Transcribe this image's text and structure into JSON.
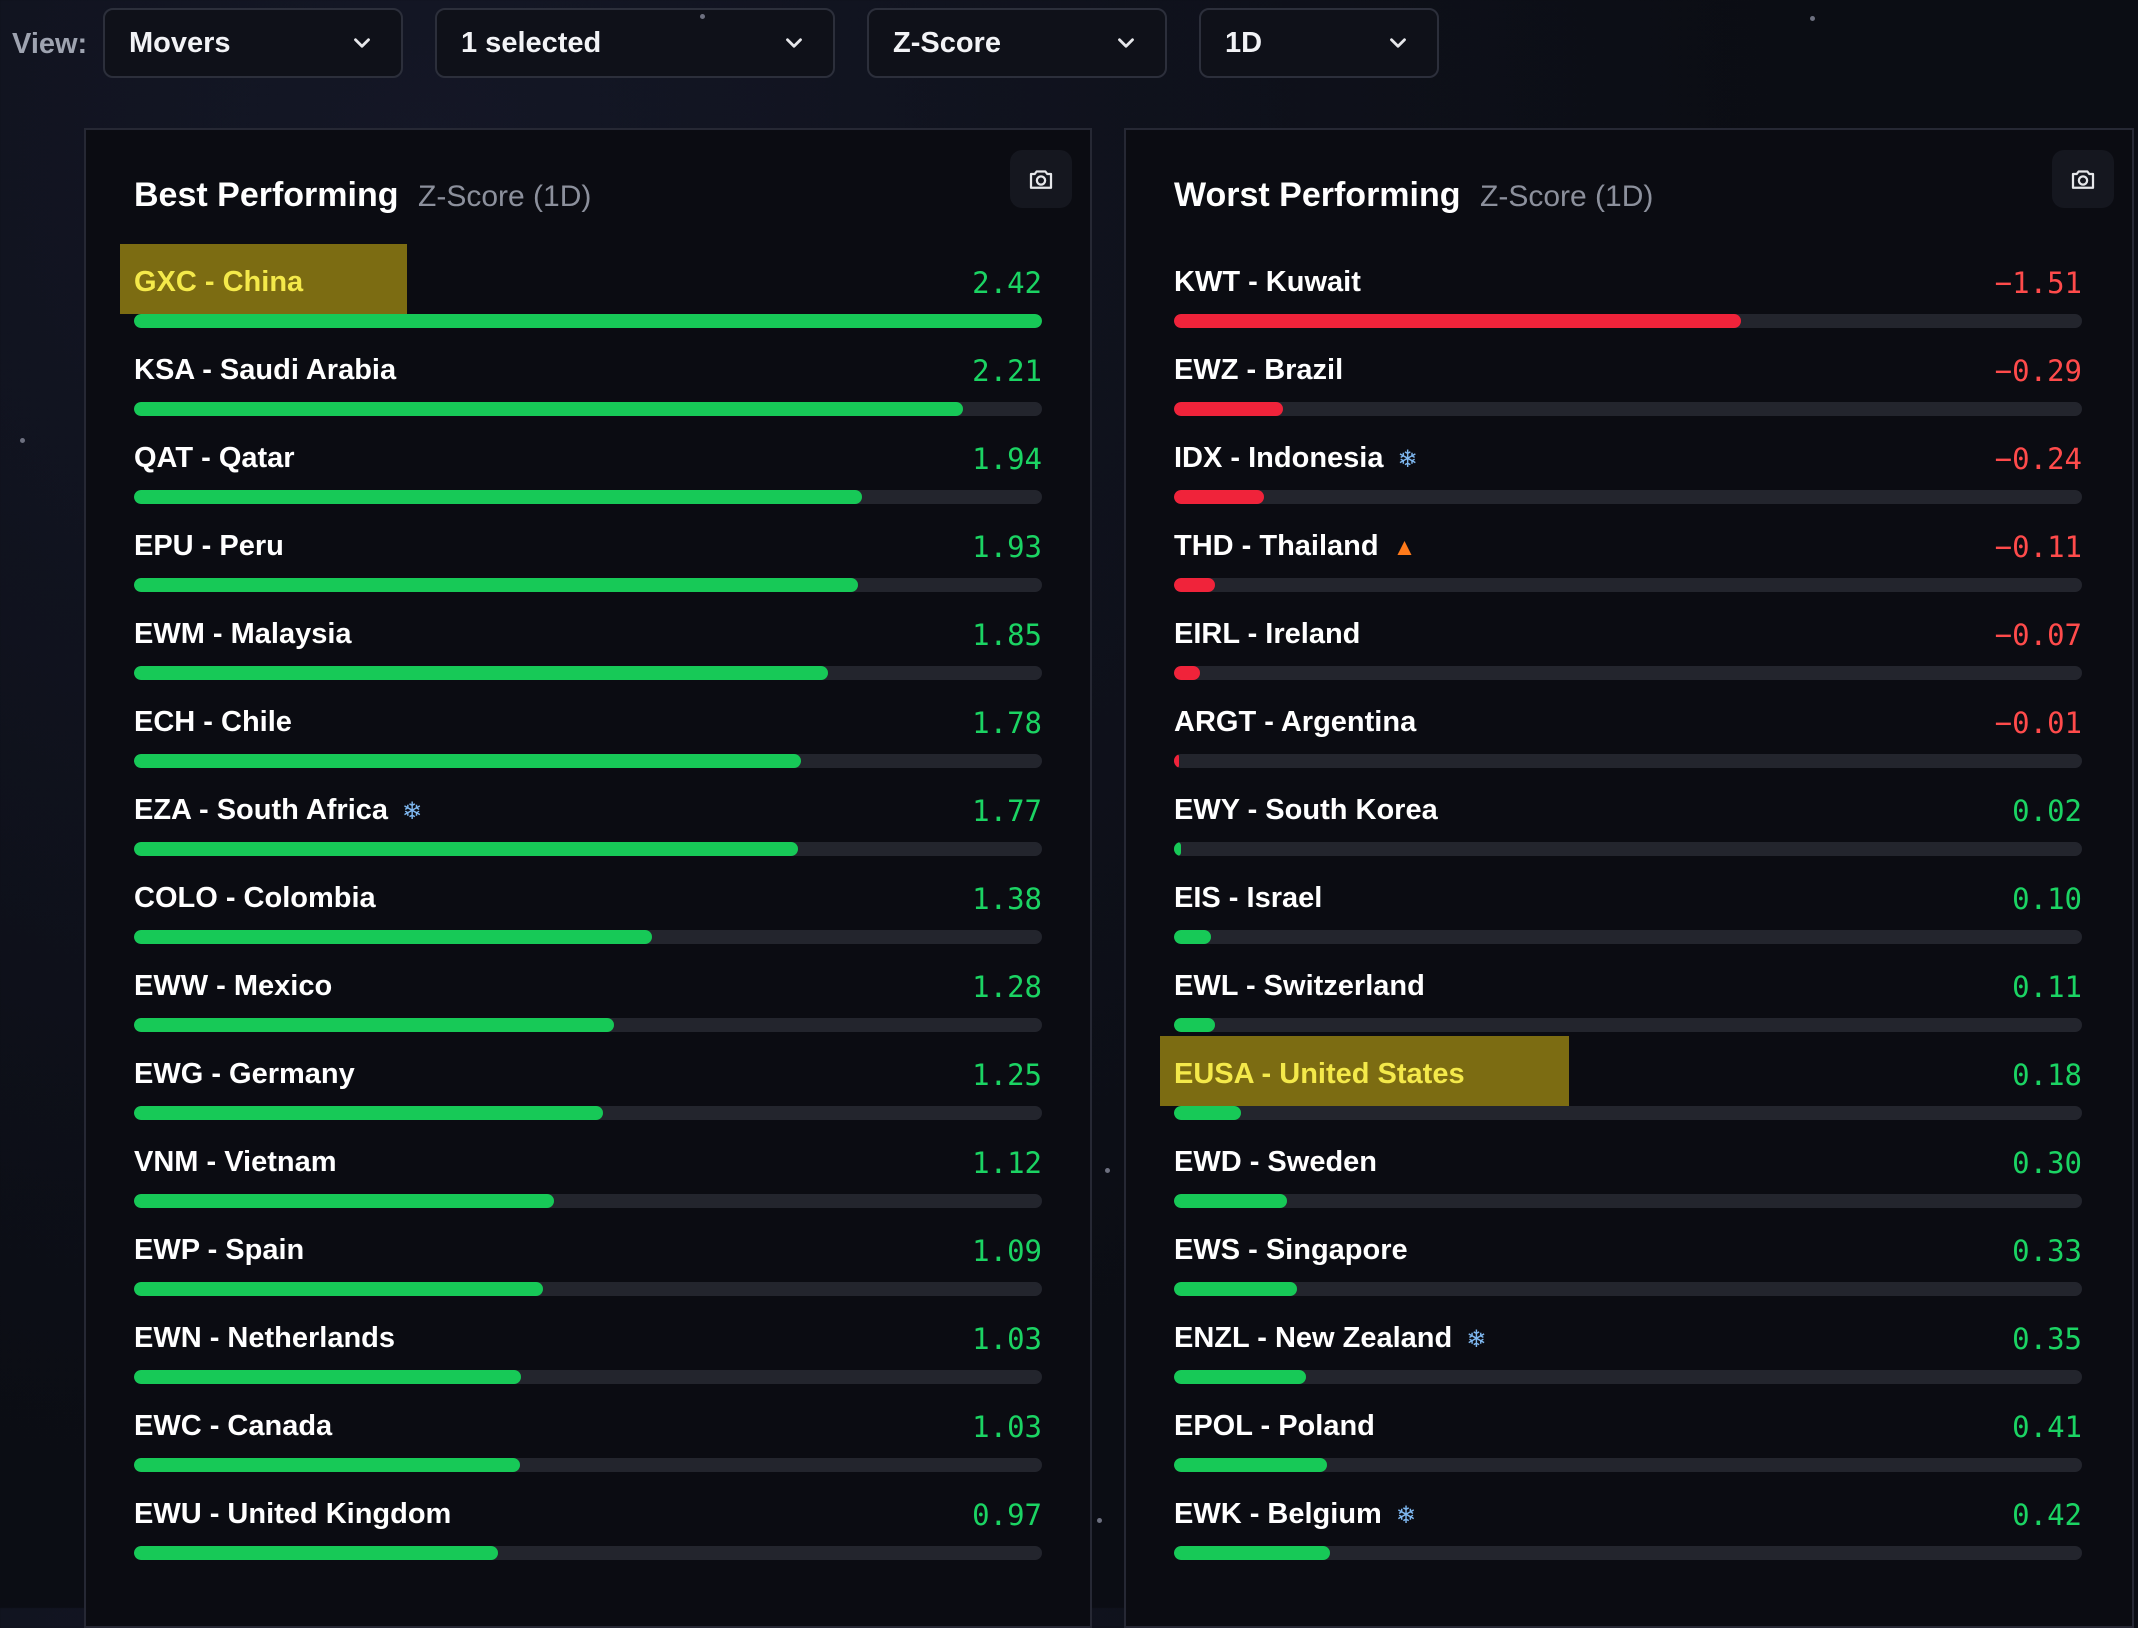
{
  "view": {
    "label": "View:",
    "selects": [
      {
        "value": "Movers"
      },
      {
        "value": "1 selected"
      },
      {
        "value": "Z-Score"
      },
      {
        "value": "1D"
      }
    ]
  },
  "colors": {
    "positive": "#17c957",
    "negative": "#f0233a",
    "highlight": "#7c6c12"
  },
  "best": {
    "title": "Best Performing",
    "subtitle": "Z-Score (1D)",
    "rows": [
      {
        "name": "GXC - China",
        "value": "2.42",
        "sign": "pos",
        "fill": 1.0,
        "highlight": true
      },
      {
        "name": "KSA - Saudi Arabia",
        "value": "2.21",
        "sign": "pos",
        "fill": 0.913
      },
      {
        "name": "QAT - Qatar",
        "value": "1.94",
        "sign": "pos",
        "fill": 0.802
      },
      {
        "name": "EPU - Peru",
        "value": "1.93",
        "sign": "pos",
        "fill": 0.797
      },
      {
        "name": "EWM - Malaysia",
        "value": "1.85",
        "sign": "pos",
        "fill": 0.764
      },
      {
        "name": "ECH - Chile",
        "value": "1.78",
        "sign": "pos",
        "fill": 0.735
      },
      {
        "name": "EZA - South Africa",
        "value": "1.77",
        "sign": "pos",
        "fill": 0.731,
        "icon": "snowflake"
      },
      {
        "name": "COLO - Colombia",
        "value": "1.38",
        "sign": "pos",
        "fill": 0.57
      },
      {
        "name": "EWW - Mexico",
        "value": "1.28",
        "sign": "pos",
        "fill": 0.529
      },
      {
        "name": "EWG - Germany",
        "value": "1.25",
        "sign": "pos",
        "fill": 0.517
      },
      {
        "name": "VNM - Vietnam",
        "value": "1.12",
        "sign": "pos",
        "fill": 0.463
      },
      {
        "name": "EWP - Spain",
        "value": "1.09",
        "sign": "pos",
        "fill": 0.45
      },
      {
        "name": "EWN - Netherlands",
        "value": "1.03",
        "sign": "pos",
        "fill": 0.426
      },
      {
        "name": "EWC - Canada",
        "value": "1.03",
        "sign": "pos",
        "fill": 0.425
      },
      {
        "name": "EWU - United Kingdom",
        "value": "0.97",
        "sign": "pos",
        "fill": 0.401
      }
    ]
  },
  "worst": {
    "title": "Worst Performing",
    "subtitle": "Z-Score (1D)",
    "rows": [
      {
        "name": "KWT - Kuwait",
        "value": "−1.51",
        "sign": "neg",
        "fill": 0.624
      },
      {
        "name": "EWZ - Brazil",
        "value": "−0.29",
        "sign": "neg",
        "fill": 0.12
      },
      {
        "name": "IDX - Indonesia",
        "value": "−0.24",
        "sign": "neg",
        "fill": 0.099,
        "icon": "snowflake"
      },
      {
        "name": "THD - Thailand",
        "value": "−0.11",
        "sign": "neg",
        "fill": 0.045,
        "icon": "fire"
      },
      {
        "name": "EIRL - Ireland",
        "value": "−0.07",
        "sign": "neg",
        "fill": 0.029
      },
      {
        "name": "ARGT - Argentina",
        "value": "−0.01",
        "sign": "neg",
        "fill": 0.006
      },
      {
        "name": "EWY - South Korea",
        "value": "0.02",
        "sign": "pos",
        "fill": 0.008
      },
      {
        "name": "EIS - Israel",
        "value": "0.10",
        "sign": "pos",
        "fill": 0.041
      },
      {
        "name": "EWL - Switzerland",
        "value": "0.11",
        "sign": "pos",
        "fill": 0.045
      },
      {
        "name": "EUSA - United States",
        "value": "0.18",
        "sign": "pos",
        "fill": 0.074,
        "highlight": true
      },
      {
        "name": "EWD - Sweden",
        "value": "0.30",
        "sign": "pos",
        "fill": 0.124
      },
      {
        "name": "EWS - Singapore",
        "value": "0.33",
        "sign": "pos",
        "fill": 0.136
      },
      {
        "name": "ENZL - New Zealand",
        "value": "0.35",
        "sign": "pos",
        "fill": 0.145,
        "icon": "snowflake"
      },
      {
        "name": "EPOL - Poland",
        "value": "0.41",
        "sign": "pos",
        "fill": 0.169
      },
      {
        "name": "EWK - Belgium",
        "value": "0.42",
        "sign": "pos",
        "fill": 0.172,
        "icon": "snowflake"
      }
    ]
  }
}
